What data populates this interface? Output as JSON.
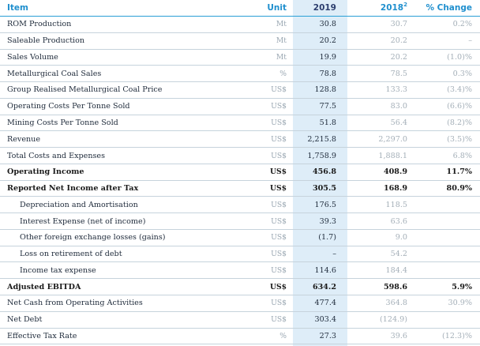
{
  "header": {
    "item": "Item",
    "unit": "Unit",
    "y2019": "2019",
    "y2018": "2018",
    "y2018_sup": "2",
    "change": "% Change"
  },
  "rows": [
    {
      "item": "ROM Production",
      "unit": "Mt",
      "y2019": "30.8",
      "y2018": "30.7",
      "change": "0.2%",
      "bold": false,
      "indent": false
    },
    {
      "item": "Saleable Production",
      "unit": "Mt",
      "y2019": "20.2",
      "y2018": "20.2",
      "change": "–",
      "bold": false,
      "indent": false
    },
    {
      "item": "Sales Volume",
      "unit": "Mt",
      "y2019": "19.9",
      "y2018": "20.2",
      "change": "(1.0)%",
      "bold": false,
      "indent": false
    },
    {
      "item": "Metallurgical Coal Sales",
      "unit": "%",
      "y2019": "78.8",
      "y2018": "78.5",
      "change": "0.3%",
      "bold": false,
      "indent": false
    },
    {
      "item": "Group Realised Metallurgical Coal Price",
      "unit": "US$",
      "y2019": "128.8",
      "y2018": "133.3",
      "change": "(3.4)%",
      "bold": false,
      "indent": false
    },
    {
      "item": "Operating Costs Per Tonne Sold",
      "unit": "US$",
      "y2019": "77.5",
      "y2018": "83.0",
      "change": "(6.6)%",
      "bold": false,
      "indent": false
    },
    {
      "item": "Mining Costs Per Tonne Sold",
      "unit": "US$",
      "y2019": "51.8",
      "y2018": "56.4",
      "change": "(8.2)%",
      "bold": false,
      "indent": false
    },
    {
      "item": "Revenue",
      "unit": "US$",
      "y2019": "2,215.8",
      "y2018": "2,297.0",
      "change": "(3.5)%",
      "bold": false,
      "indent": false
    },
    {
      "item": "Total Costs and Expenses",
      "unit": "US$",
      "y2019": "1,758.9",
      "y2018": "1,888.1",
      "change": "6.8%",
      "bold": false,
      "indent": false
    },
    {
      "item": "Operating Income",
      "unit": "US$",
      "y2019": "456.8",
      "y2018": "408.9",
      "change": "11.7%",
      "bold": true,
      "indent": false
    },
    {
      "item": "Reported Net Income after Tax",
      "unit": "US$",
      "y2019": "305.5",
      "y2018": "168.9",
      "change": "80.9%",
      "bold": true,
      "indent": false
    },
    {
      "item": "Depreciation and Amortisation",
      "unit": "US$",
      "y2019": "176.5",
      "y2018": "118.5",
      "change": "",
      "bold": false,
      "indent": true
    },
    {
      "item": "Interest Expense (net of income)",
      "unit": "US$",
      "y2019": "39.3",
      "y2018": "63.6",
      "change": "",
      "bold": false,
      "indent": true
    },
    {
      "item": "Other foreign exchange losses (gains)",
      "unit": "US$",
      "y2019": "(1.7)",
      "y2018": "9.0",
      "change": "",
      "bold": false,
      "indent": true
    },
    {
      "item": "Loss on retirement of debt",
      "unit": "US$",
      "y2019": "–",
      "y2018": "54.2",
      "change": "",
      "bold": false,
      "indent": true
    },
    {
      "item": "Income tax expense",
      "unit": "US$",
      "y2019": "114.6",
      "y2018": "184.4",
      "change": "",
      "bold": false,
      "indent": true
    },
    {
      "item": "Adjusted EBITDA",
      "unit": "US$",
      "y2019": "634.2",
      "y2018": "598.6",
      "change": "5.9%",
      "bold": true,
      "indent": false
    },
    {
      "item": "Net Cash from Operating Activities",
      "unit": "US$",
      "y2019": "477.4",
      "y2018": "364.8",
      "change": "30.9%",
      "bold": false,
      "indent": false
    },
    {
      "item": "Net Debt",
      "unit": "US$",
      "y2019": "303.4",
      "y2018": "(124.9)",
      "change": "",
      "bold": false,
      "indent": false
    },
    {
      "item": "Effective Tax Rate",
      "unit": "%",
      "y2019": "27.3",
      "y2018": "39.6",
      "change": "(12.3)%",
      "bold": false,
      "indent": false
    }
  ]
}
